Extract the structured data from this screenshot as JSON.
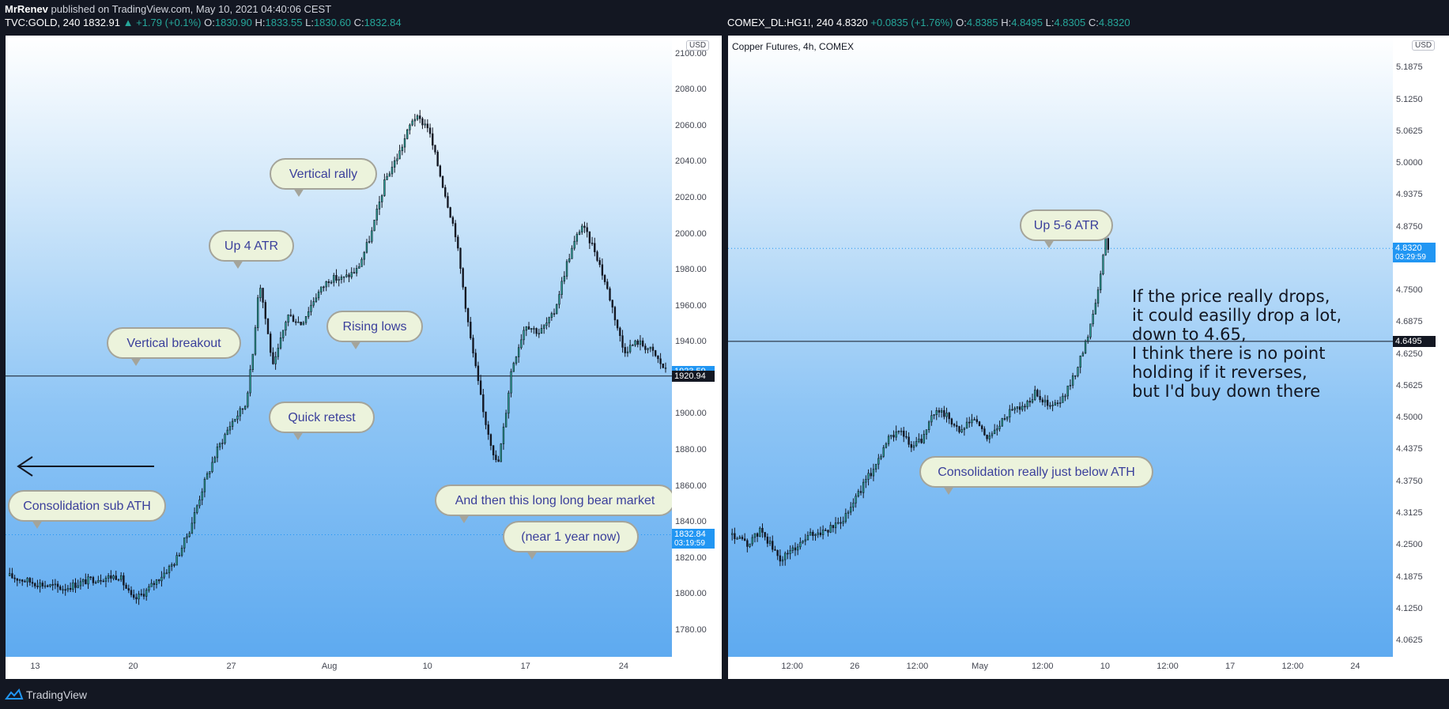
{
  "header": {
    "author": "MrRenev",
    "published": "published on TradingView.com, May 10, 2021 04:40:06 CEST"
  },
  "left_ohlc": {
    "symbol": "TVC:GOLD, 240",
    "last": "1832.91",
    "change": "▲ +1.79 (+0.1%)",
    "o_label": "O:",
    "o": "1830.90",
    "h_label": "H:",
    "h": "1833.55",
    "l_label": "L:",
    "l": "1830.60",
    "c_label": "C:",
    "c": "1832.84"
  },
  "right_ohlc": {
    "symbol": "COMEX_DL:HG1!, 240",
    "last": "4.8320",
    "change": "+0.0835 (+1.76%)",
    "o_label": "O:",
    "o": "4.8385",
    "h_label": "H:",
    "h": "4.8495",
    "l_label": "L:",
    "l": "4.8305",
    "c_label": "C:",
    "c": "4.8320"
  },
  "footer": {
    "brand": "TradingView"
  },
  "colors": {
    "up": "#26a69a",
    "candle": "#131722",
    "accent": "#2196f3",
    "bubble_fill": "#ecf3dc",
    "bubble_text": "#3a3f9b"
  },
  "chart_data": [
    {
      "type": "candlestick",
      "title": "",
      "currency": "USD",
      "ylim": [
        1765,
        2110
      ],
      "y_ticks": [
        "2100.00",
        "2080.00",
        "2060.00",
        "2040.00",
        "2020.00",
        "2000.00",
        "1980.00",
        "1960.00",
        "1940.00",
        "1920.00",
        "1900.00",
        "1880.00",
        "1860.00",
        "1840.00",
        "1820.00",
        "1800.00",
        "1780.00"
      ],
      "x_ticks": [
        "13",
        "20",
        "27",
        "Aug",
        "10",
        "17",
        "24"
      ],
      "x_tick_values": [
        0,
        7,
        14,
        21,
        28,
        35,
        42
      ],
      "x_range": [
        -2,
        45
      ],
      "approx_close_path": [
        [
          -2,
          1810
        ],
        [
          0,
          1806
        ],
        [
          2,
          1803
        ],
        [
          4,
          1808
        ],
        [
          6,
          1810
        ],
        [
          7,
          1796
        ],
        [
          8,
          1802
        ],
        [
          9,
          1810
        ],
        [
          10,
          1818
        ],
        [
          11,
          1835
        ],
        [
          12,
          1860
        ],
        [
          13,
          1880
        ],
        [
          14,
          1895
        ],
        [
          15,
          1905
        ],
        [
          15.5,
          1930
        ],
        [
          16,
          1975
        ],
        [
          16.5,
          1950
        ],
        [
          17,
          1925
        ],
        [
          18,
          1955
        ],
        [
          19,
          1950
        ],
        [
          20,
          1965
        ],
        [
          21,
          1975
        ],
        [
          22,
          1975
        ],
        [
          23,
          1980
        ],
        [
          24,
          2000
        ],
        [
          25,
          2030
        ],
        [
          26,
          2045
        ],
        [
          27,
          2065
        ],
        [
          28,
          2060
        ],
        [
          29,
          2030
        ],
        [
          30,
          2000
        ],
        [
          31,
          1945
        ],
        [
          32,
          1900
        ],
        [
          33,
          1870
        ],
        [
          33.5,
          1895
        ],
        [
          34,
          1925
        ],
        [
          35,
          1950
        ],
        [
          36,
          1945
        ],
        [
          37,
          1955
        ],
        [
          38,
          1985
        ],
        [
          39,
          2005
        ],
        [
          40,
          1990
        ],
        [
          41,
          1965
        ],
        [
          42,
          1935
        ],
        [
          43,
          1940
        ],
        [
          44,
          1935
        ],
        [
          45,
          1924
        ]
      ],
      "hlines": [
        {
          "value": 1920.94,
          "label": "1920.94",
          "style": "solid"
        },
        {
          "value": 1832.84,
          "label": "1832.84",
          "style": "dotted"
        }
      ],
      "price_tags": [
        {
          "value": 1923.59,
          "label": "1923.59",
          "sub": "",
          "color": "#2196f3"
        },
        {
          "value": 1920.94,
          "label": "1920.94",
          "sub": "",
          "color": "#131722"
        },
        {
          "value": 1832.84,
          "label": "1832.84",
          "sub": "03:19:59",
          "color": "#2196f3"
        }
      ],
      "annotations": [
        {
          "text": "Vertical rally"
        },
        {
          "text": "Up 4 ATR"
        },
        {
          "text": "Vertical breakout"
        },
        {
          "text": "Rising lows"
        },
        {
          "text": "Quick retest"
        },
        {
          "text": "Consolidation sub ATH"
        },
        {
          "text": "And then this long long bear market"
        },
        {
          "text": "(near 1 year now)"
        }
      ]
    },
    {
      "type": "candlestick",
      "title": "Copper Futures, 4h, COMEX",
      "currency": "USD",
      "ylim": [
        4.03,
        5.25
      ],
      "y_ticks": [
        "5.1875",
        "5.1250",
        "5.0625",
        "5.0000",
        "4.9375",
        "4.8750",
        "4.8125",
        "4.7500",
        "4.6875",
        "4.6250",
        "4.5625",
        "4.5000",
        "4.4375",
        "4.3750",
        "4.3125",
        "4.2500",
        "4.1875",
        "4.1250",
        "4.0625"
      ],
      "x_ticks": [
        "12:00",
        "26",
        "12:00",
        "May",
        "12:00",
        "10",
        "12:00",
        "17",
        "12:00",
        "24"
      ],
      "x_tick_values": [
        1,
        2,
        3,
        4,
        5,
        6,
        7,
        8,
        9,
        10
      ],
      "x_range": [
        0,
        10.5
      ],
      "approx_close_path": [
        [
          0,
          4.27
        ],
        [
          0.3,
          4.25
        ],
        [
          0.5,
          4.28
        ],
        [
          0.8,
          4.22
        ],
        [
          1,
          4.24
        ],
        [
          1.3,
          4.27
        ],
        [
          1.6,
          4.28
        ],
        [
          1.8,
          4.3
        ],
        [
          2,
          4.34
        ],
        [
          2.3,
          4.4
        ],
        [
          2.5,
          4.45
        ],
        [
          2.7,
          4.48
        ],
        [
          2.9,
          4.44
        ],
        [
          3.1,
          4.46
        ],
        [
          3.3,
          4.52
        ],
        [
          3.5,
          4.5
        ],
        [
          3.7,
          4.47
        ],
        [
          3.9,
          4.5
        ],
        [
          4.1,
          4.46
        ],
        [
          4.3,
          4.48
        ],
        [
          4.5,
          4.52
        ],
        [
          4.7,
          4.52
        ],
        [
          4.9,
          4.55
        ],
        [
          5.1,
          4.52
        ],
        [
          5.3,
          4.53
        ],
        [
          5.5,
          4.58
        ],
        [
          5.7,
          4.65
        ],
        [
          5.8,
          4.7
        ],
        [
          5.9,
          4.76
        ],
        [
          6.0,
          4.85
        ],
        [
          6.05,
          4.83
        ]
      ],
      "hlines": [
        {
          "value": 4.832,
          "label": "4.8320",
          "style": "dotted"
        },
        {
          "value": 4.6495,
          "label": "4.6495",
          "style": "solid"
        }
      ],
      "price_tags": [
        {
          "value": 4.832,
          "label": "4.8320",
          "sub": "03:29:59",
          "color": "#2196f3"
        },
        {
          "value": 4.6495,
          "label": "4.6495",
          "sub": "",
          "color": "#131722"
        }
      ],
      "annotations": [
        {
          "text": "Up 5-6 ATR"
        },
        {
          "text": "Consolidation really just below ATH"
        }
      ],
      "note": "If the price really drops,\nit could easilly drop a lot,\ndown to 4.65,\nI think there is no point\nholding if it reverses,\nbut I'd buy down there"
    }
  ]
}
